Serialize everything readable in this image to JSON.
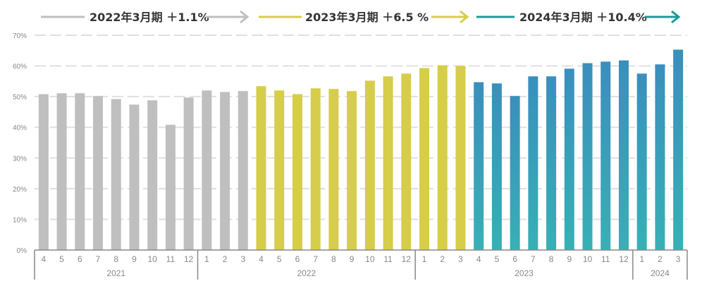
{
  "chart_data": {
    "type": "bar",
    "title": "",
    "xlabel": "",
    "ylabel": "",
    "ylim": [
      0,
      70
    ],
    "yticks": [
      "0%",
      "10%",
      "20%",
      "30%",
      "40%",
      "50%",
      "60%",
      "70%"
    ],
    "grid": true,
    "periods": [
      {
        "label": "2022年3月期 ＋1.1%",
        "color": "#bfbfbf",
        "start": 0,
        "end": 12
      },
      {
        "label": "2023年3月期 ＋6.5 %",
        "color": "#d6cd4a",
        "start": 12,
        "end": 24
      },
      {
        "label": "2024年3月期 ＋10.4%",
        "color": "#1a9a9a",
        "start": 24,
        "end": 36
      }
    ],
    "years": [
      {
        "label": "2021",
        "start": 0,
        "end": 9
      },
      {
        "label": "2022",
        "start": 9,
        "end": 21
      },
      {
        "label": "2023",
        "start": 21,
        "end": 33
      },
      {
        "label": "2024",
        "start": 33,
        "end": 36
      }
    ],
    "categories": [
      "4",
      "5",
      "6",
      "7",
      "8",
      "9",
      "10",
      "11",
      "12",
      "1",
      "2",
      "3",
      "4",
      "5",
      "6",
      "7",
      "8",
      "9",
      "10",
      "11",
      "12",
      "1",
      "2",
      "3",
      "4",
      "5",
      "6",
      "7",
      "8",
      "9",
      "10",
      "11",
      "12",
      "1",
      "2",
      "3"
    ],
    "values": [
      50.8,
      51.1,
      51.1,
      50.2,
      49.2,
      47.4,
      48.8,
      40.8,
      49.7,
      52.0,
      51.5,
      51.8,
      53.4,
      52.0,
      50.8,
      52.7,
      52.5,
      51.8,
      55.2,
      56.6,
      57.5,
      59.3,
      60.2,
      60.0,
      54.7,
      54.3,
      50.2,
      56.6,
      56.6,
      59.1,
      60.9,
      61.4,
      61.8,
      57.5,
      60.5,
      65.3
    ]
  }
}
